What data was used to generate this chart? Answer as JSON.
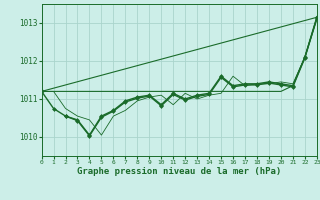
{
  "bg_color": "#cceee8",
  "grid_color": "#aad4cc",
  "line_color": "#1a6b2a",
  "x_label": "Graphe pression niveau de la mer (hPa)",
  "xlim": [
    0,
    23
  ],
  "ylim": [
    1009.5,
    1013.5
  ],
  "yticks": [
    1010,
    1011,
    1012,
    1013
  ],
  "xticks": [
    0,
    1,
    2,
    3,
    4,
    5,
    6,
    7,
    8,
    9,
    10,
    11,
    12,
    13,
    14,
    15,
    16,
    17,
    18,
    19,
    20,
    21,
    22,
    23
  ],
  "series": [
    {
      "x": [
        0,
        1,
        2,
        3,
        4,
        5,
        6,
        7,
        8,
        9,
        10,
        11,
        12,
        13,
        14,
        15,
        16,
        17,
        18,
        19,
        20,
        21,
        22,
        23
      ],
      "y": [
        1011.2,
        1011.2,
        1011.2,
        1011.2,
        1011.2,
        1011.2,
        1011.2,
        1011.2,
        1011.2,
        1011.2,
        1011.2,
        1011.2,
        1011.2,
        1011.2,
        1011.2,
        1011.2,
        1011.2,
        1011.2,
        1011.2,
        1011.2,
        1011.2,
        1011.35,
        1012.1,
        1013.1
      ],
      "marker": null,
      "markersize": 0,
      "linewidth": 0.8
    },
    {
      "x": [
        0,
        1,
        2,
        3,
        4,
        5,
        6,
        7,
        8,
        9,
        10,
        11,
        12,
        13,
        14,
        15,
        16,
        17,
        18,
        19,
        20,
        21,
        22,
        23
      ],
      "y": [
        1011.2,
        1010.75,
        1010.55,
        1010.45,
        1010.05,
        1010.55,
        1010.7,
        1010.95,
        1011.05,
        1011.1,
        1010.85,
        1011.15,
        1011.0,
        1011.1,
        1011.15,
        1011.6,
        1011.35,
        1011.4,
        1011.4,
        1011.45,
        1011.4,
        1011.35,
        1012.1,
        1013.15
      ],
      "marker": "D",
      "markersize": 2.0,
      "linewidth": 1.0
    },
    {
      "x": [
        2,
        3,
        4,
        5,
        6,
        7,
        8,
        9,
        10,
        11,
        12,
        13,
        14,
        15,
        16,
        17,
        18,
        19,
        20,
        21,
        22,
        23
      ],
      "y": [
        1010.55,
        1010.43,
        1010.03,
        1010.52,
        1010.68,
        1010.92,
        1011.02,
        1011.08,
        1010.82,
        1011.12,
        1010.97,
        1011.07,
        1011.12,
        1011.57,
        1011.32,
        1011.37,
        1011.37,
        1011.42,
        1011.37,
        1011.32,
        1012.08,
        1013.12
      ],
      "marker": "D",
      "markersize": 2.0,
      "linewidth": 1.0
    },
    {
      "x": [
        0,
        1,
        2,
        3,
        4,
        5,
        6,
        7,
        8,
        9,
        10,
        11,
        12,
        13,
        14,
        15,
        16,
        17,
        18,
        19,
        20,
        21,
        22,
        23
      ],
      "y": [
        1011.2,
        1011.2,
        1010.75,
        1010.55,
        1010.45,
        1010.05,
        1010.55,
        1010.7,
        1010.95,
        1011.05,
        1011.1,
        1010.85,
        1011.15,
        1011.0,
        1011.1,
        1011.15,
        1011.6,
        1011.35,
        1011.4,
        1011.4,
        1011.45,
        1011.4,
        1012.1,
        1013.15
      ],
      "marker": null,
      "markersize": 0,
      "linewidth": 0.6
    },
    {
      "x": [
        0,
        23
      ],
      "y": [
        1011.2,
        1013.15
      ],
      "marker": null,
      "markersize": 0,
      "linewidth": 0.8
    }
  ]
}
